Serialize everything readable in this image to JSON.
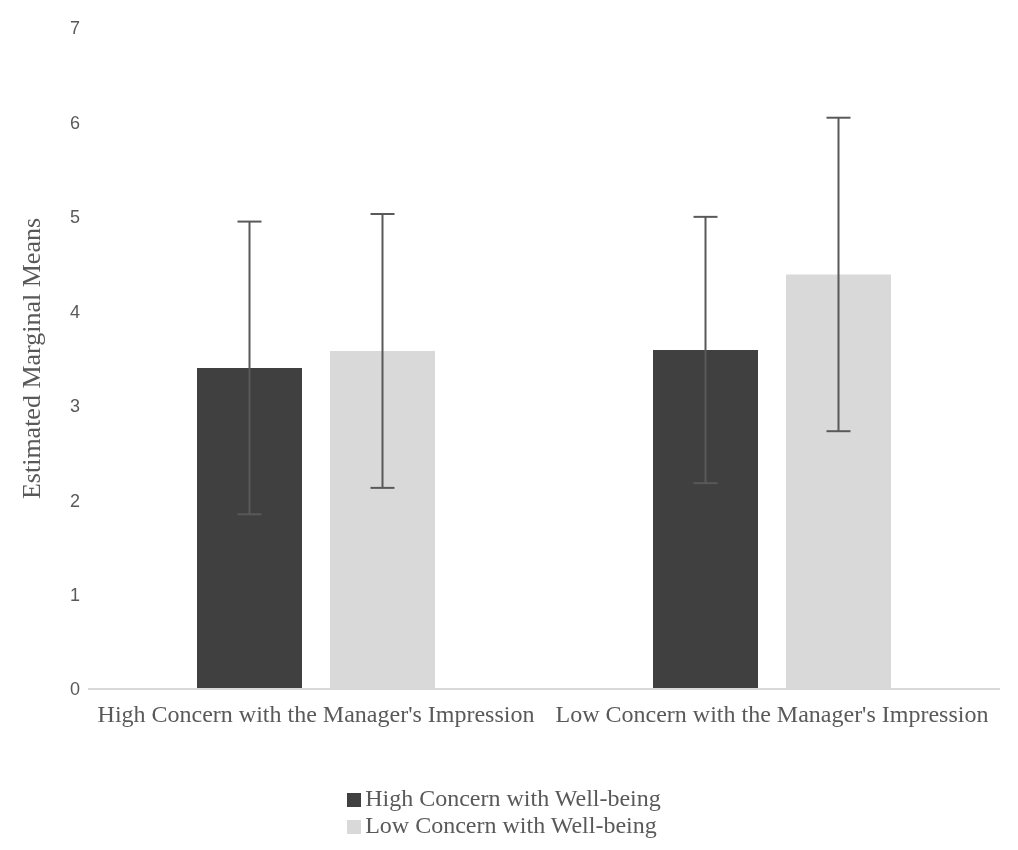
{
  "chart_data": {
    "type": "bar",
    "ylabel": "Estimated Marginal Means",
    "categories": [
      "High Concern with the Manager's Impression",
      "Low Concern with the Manager's Impression"
    ],
    "series": [
      {
        "name": "High Concern with Well-being",
        "color": "#404040",
        "values": [
          3.4,
          3.59
        ],
        "errors": [
          1.55,
          1.41
        ]
      },
      {
        "name": "Low Concern with Well-being",
        "color": "#d9d9d9",
        "values": [
          3.58,
          4.39
        ],
        "errors": [
          1.45,
          1.66
        ]
      }
    ],
    "ylim": [
      0,
      7
    ],
    "yticks": [
      0,
      1,
      2,
      3,
      4,
      5,
      6,
      7
    ],
    "grid": false,
    "legend": "bottom"
  }
}
